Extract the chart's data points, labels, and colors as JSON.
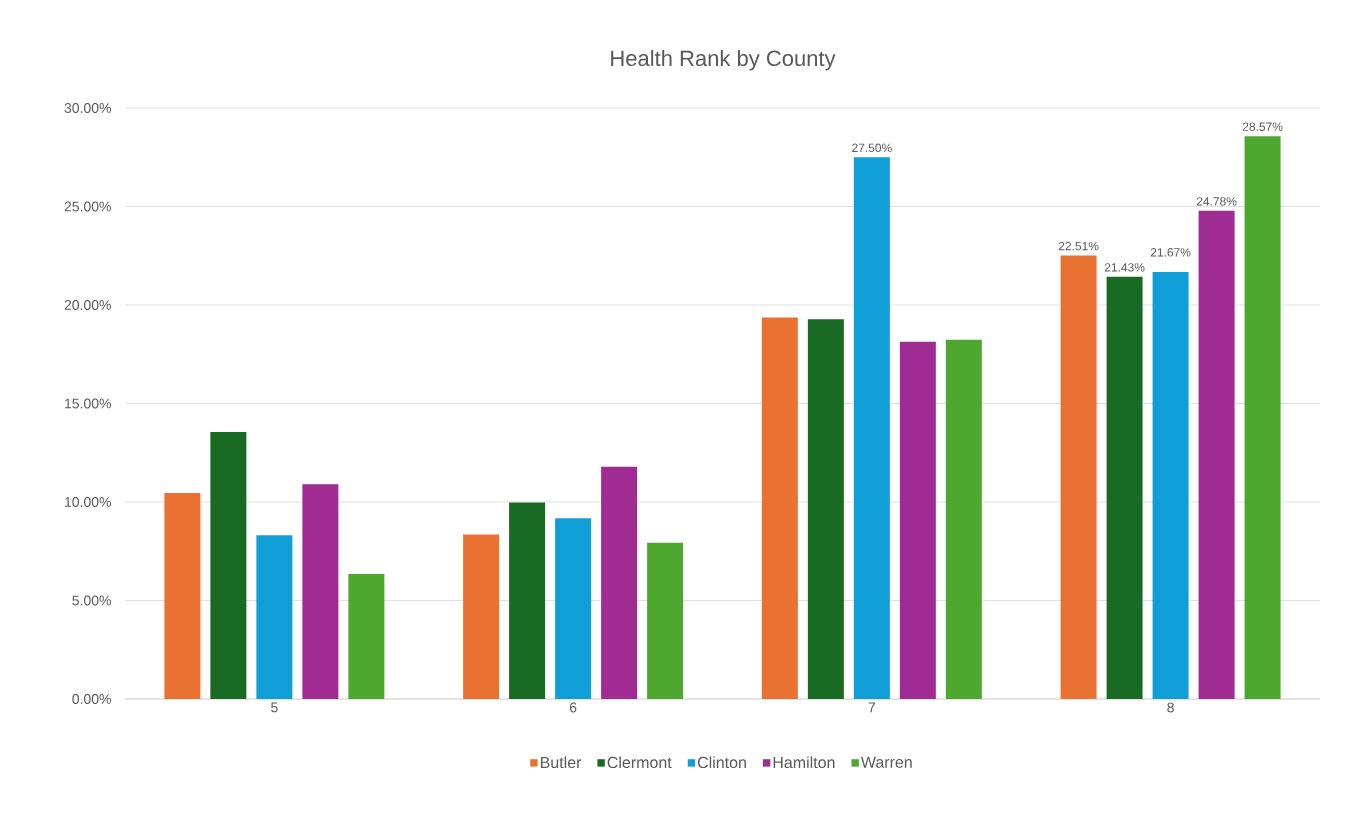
{
  "chart_data": {
    "type": "bar",
    "title": "Health Rank by County",
    "categories": [
      "5",
      "6",
      "7",
      "8"
    ],
    "series": [
      {
        "name": "Butler",
        "color": "#e97132",
        "values": [
          10.46,
          8.35,
          19.36,
          22.51
        ],
        "value_labels": [
          null,
          null,
          null,
          "22.51%"
        ]
      },
      {
        "name": "Clermont",
        "color": "#196b24",
        "values": [
          13.55,
          9.98,
          19.28,
          21.43
        ],
        "value_labels": [
          null,
          null,
          null,
          "21.43%"
        ]
      },
      {
        "name": "Clinton",
        "color": "#0f9ed5",
        "values": [
          8.31,
          9.18,
          27.5,
          21.67
        ],
        "value_labels": [
          null,
          null,
          "27.50%",
          "21.67%"
        ]
      },
      {
        "name": "Hamilton",
        "color": "#a02b93",
        "values": [
          10.9,
          11.79,
          18.13,
          24.78
        ],
        "value_labels": [
          null,
          null,
          null,
          "24.78%"
        ]
      },
      {
        "name": "Warren",
        "color": "#4ea72e",
        "values": [
          6.35,
          7.93,
          18.23,
          28.57
        ],
        "value_labels": [
          null,
          null,
          null,
          "28.57%"
        ]
      }
    ],
    "ylim": [
      0,
      30
    ],
    "yticks": [
      {
        "value": 0,
        "label": "0.00%"
      },
      {
        "value": 5,
        "label": "5.00%"
      },
      {
        "value": 10,
        "label": "10.00%"
      },
      {
        "value": 15,
        "label": "15.00%"
      },
      {
        "value": 20,
        "label": "20.00%"
      },
      {
        "value": 25,
        "label": "25.00%"
      },
      {
        "value": 30,
        "label": "30.00%"
      }
    ],
    "grid": "y",
    "legend": "bottom"
  }
}
